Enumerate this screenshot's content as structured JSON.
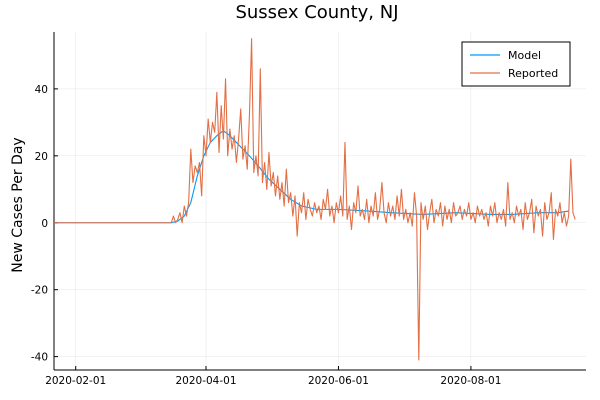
{
  "chart_data": {
    "type": "line",
    "title": "Sussex County, NJ",
    "xlabel": "",
    "ylabel": "New Cases Per Day",
    "x_range": [
      "2020-01-22",
      "2020-09-23"
    ],
    "ylim": [
      -44,
      57
    ],
    "x_ticks": [
      "2020-02-01",
      "2020-04-01",
      "2020-06-01",
      "2020-08-01"
    ],
    "y_ticks": [
      -40,
      -20,
      0,
      20,
      40
    ],
    "grid": true,
    "legend_position": "top-right",
    "colors": {
      "Model": "#009AFA",
      "Reported": "#E26F46"
    },
    "series": [
      {
        "name": "Model",
        "points": [
          [
            "2020-01-22",
            0
          ],
          [
            "2020-03-16",
            0
          ],
          [
            "2020-03-19",
            0.5
          ],
          [
            "2020-03-22",
            2
          ],
          [
            "2020-03-25",
            6
          ],
          [
            "2020-03-28",
            14
          ],
          [
            "2020-03-31",
            20
          ],
          [
            "2020-04-03",
            24
          ],
          [
            "2020-04-06",
            26
          ],
          [
            "2020-04-09",
            27.5
          ],
          [
            "2020-04-12",
            26
          ],
          [
            "2020-04-15",
            24
          ],
          [
            "2020-04-18",
            22
          ],
          [
            "2020-04-21",
            20
          ],
          [
            "2020-04-25",
            17
          ],
          [
            "2020-04-30",
            13
          ],
          [
            "2020-05-05",
            10
          ],
          [
            "2020-05-10",
            7
          ],
          [
            "2020-05-15",
            5
          ],
          [
            "2020-05-22",
            4
          ],
          [
            "2020-06-01",
            4
          ],
          [
            "2020-06-15",
            3.5
          ],
          [
            "2020-06-25",
            3
          ],
          [
            "2020-07-10",
            2.5
          ],
          [
            "2020-07-25",
            3
          ],
          [
            "2020-08-10",
            2.5
          ],
          [
            "2020-08-20",
            2.5
          ],
          [
            "2020-09-01",
            3
          ],
          [
            "2020-09-10",
            3
          ],
          [
            "2020-09-15",
            3.5
          ]
        ]
      },
      {
        "name": "Reported",
        "points": [
          [
            "2020-01-22",
            0
          ],
          [
            "2020-03-16",
            0
          ],
          [
            "2020-03-17",
            2
          ],
          [
            "2020-03-18",
            0
          ],
          [
            "2020-03-19",
            1
          ],
          [
            "2020-03-20",
            3
          ],
          [
            "2020-03-21",
            0
          ],
          [
            "2020-03-22",
            5
          ],
          [
            "2020-03-23",
            2
          ],
          [
            "2020-03-24",
            6
          ],
          [
            "2020-03-25",
            22
          ],
          [
            "2020-03-26",
            12
          ],
          [
            "2020-03-27",
            17
          ],
          [
            "2020-03-28",
            15
          ],
          [
            "2020-03-29",
            18
          ],
          [
            "2020-03-30",
            8
          ],
          [
            "2020-03-31",
            26
          ],
          [
            "2020-04-01",
            20
          ],
          [
            "2020-04-02",
            31
          ],
          [
            "2020-04-03",
            24
          ],
          [
            "2020-04-04",
            30
          ],
          [
            "2020-04-05",
            27
          ],
          [
            "2020-04-06",
            39
          ],
          [
            "2020-04-07",
            21
          ],
          [
            "2020-04-08",
            35
          ],
          [
            "2020-04-09",
            25
          ],
          [
            "2020-04-10",
            43
          ],
          [
            "2020-04-11",
            20
          ],
          [
            "2020-04-12",
            28
          ],
          [
            "2020-04-13",
            22
          ],
          [
            "2020-04-14",
            26
          ],
          [
            "2020-04-15",
            18
          ],
          [
            "2020-04-16",
            25
          ],
          [
            "2020-04-17",
            34
          ],
          [
            "2020-04-18",
            19
          ],
          [
            "2020-04-19",
            23
          ],
          [
            "2020-04-20",
            16
          ],
          [
            "2020-04-21",
            32
          ],
          [
            "2020-04-22",
            55
          ],
          [
            "2020-04-23",
            15
          ],
          [
            "2020-04-24",
            20
          ],
          [
            "2020-04-25",
            14
          ],
          [
            "2020-04-26",
            46
          ],
          [
            "2020-04-27",
            12
          ],
          [
            "2020-04-28",
            18
          ],
          [
            "2020-04-29",
            10
          ],
          [
            "2020-04-30",
            21
          ],
          [
            "2020-05-01",
            11
          ],
          [
            "2020-05-02",
            15
          ],
          [
            "2020-05-03",
            8
          ],
          [
            "2020-05-04",
            14
          ],
          [
            "2020-05-05",
            7
          ],
          [
            "2020-05-06",
            12
          ],
          [
            "2020-05-07",
            5
          ],
          [
            "2020-05-08",
            16
          ],
          [
            "2020-05-09",
            6
          ],
          [
            "2020-05-10",
            9
          ],
          [
            "2020-05-11",
            2
          ],
          [
            "2020-05-12",
            8
          ],
          [
            "2020-05-13",
            -4
          ],
          [
            "2020-05-14",
            6
          ],
          [
            "2020-05-15",
            3
          ],
          [
            "2020-05-16",
            9
          ],
          [
            "2020-05-17",
            1
          ],
          [
            "2020-05-18",
            7
          ],
          [
            "2020-05-19",
            4
          ],
          [
            "2020-05-20",
            2
          ],
          [
            "2020-05-21",
            6
          ],
          [
            "2020-05-22",
            3
          ],
          [
            "2020-05-23",
            5
          ],
          [
            "2020-05-24",
            1
          ],
          [
            "2020-05-25",
            7
          ],
          [
            "2020-05-26",
            4
          ],
          [
            "2020-05-27",
            10
          ],
          [
            "2020-05-28",
            2
          ],
          [
            "2020-05-29",
            5
          ],
          [
            "2020-05-30",
            0
          ],
          [
            "2020-05-31",
            6
          ],
          [
            "2020-06-01",
            3
          ],
          [
            "2020-06-02",
            8
          ],
          [
            "2020-06-03",
            2
          ],
          [
            "2020-06-04",
            24
          ],
          [
            "2020-06-05",
            1
          ],
          [
            "2020-06-06",
            5
          ],
          [
            "2020-06-07",
            -2
          ],
          [
            "2020-06-08",
            6
          ],
          [
            "2020-06-09",
            3
          ],
          [
            "2020-06-10",
            11
          ],
          [
            "2020-06-11",
            2
          ],
          [
            "2020-06-12",
            4
          ],
          [
            "2020-06-13",
            1
          ],
          [
            "2020-06-14",
            7
          ],
          [
            "2020-06-15",
            0
          ],
          [
            "2020-06-16",
            5
          ],
          [
            "2020-06-17",
            2
          ],
          [
            "2020-06-18",
            9
          ],
          [
            "2020-06-19",
            1
          ],
          [
            "2020-06-20",
            4
          ],
          [
            "2020-06-21",
            12
          ],
          [
            "2020-06-22",
            3
          ],
          [
            "2020-06-23",
            0
          ],
          [
            "2020-06-24",
            6
          ],
          [
            "2020-06-25",
            2
          ],
          [
            "2020-06-26",
            5
          ],
          [
            "2020-06-27",
            1
          ],
          [
            "2020-06-28",
            8
          ],
          [
            "2020-06-29",
            2
          ],
          [
            "2020-06-30",
            10
          ],
          [
            "2020-07-01",
            1
          ],
          [
            "2020-07-02",
            4
          ],
          [
            "2020-07-03",
            0
          ],
          [
            "2020-07-04",
            3
          ],
          [
            "2020-07-05",
            -1
          ],
          [
            "2020-07-06",
            9
          ],
          [
            "2020-07-07",
            2
          ],
          [
            "2020-07-08",
            -41
          ],
          [
            "2020-07-09",
            6
          ],
          [
            "2020-07-10",
            1
          ],
          [
            "2020-07-11",
            5
          ],
          [
            "2020-07-12",
            -2
          ],
          [
            "2020-07-13",
            3
          ],
          [
            "2020-07-14",
            7
          ],
          [
            "2020-07-15",
            0
          ],
          [
            "2020-07-16",
            4
          ],
          [
            "2020-07-17",
            2
          ],
          [
            "2020-07-18",
            6
          ],
          [
            "2020-07-19",
            -1
          ],
          [
            "2020-07-20",
            5
          ],
          [
            "2020-07-21",
            1
          ],
          [
            "2020-07-22",
            4
          ],
          [
            "2020-07-23",
            0
          ],
          [
            "2020-07-24",
            6
          ],
          [
            "2020-07-25",
            2
          ],
          [
            "2020-07-26",
            3
          ],
          [
            "2020-07-27",
            5
          ],
          [
            "2020-07-28",
            1
          ],
          [
            "2020-07-29",
            4
          ],
          [
            "2020-07-30",
            2
          ],
          [
            "2020-07-31",
            6
          ],
          [
            "2020-08-01",
            1
          ],
          [
            "2020-08-02",
            3
          ],
          [
            "2020-08-03",
            0
          ],
          [
            "2020-08-04",
            5
          ],
          [
            "2020-08-05",
            2
          ],
          [
            "2020-08-06",
            4
          ],
          [
            "2020-08-07",
            1
          ],
          [
            "2020-08-08",
            3
          ],
          [
            "2020-08-09",
            -1
          ],
          [
            "2020-08-10",
            5
          ],
          [
            "2020-08-11",
            2
          ],
          [
            "2020-08-12",
            6
          ],
          [
            "2020-08-13",
            0
          ],
          [
            "2020-08-14",
            3
          ],
          [
            "2020-08-15",
            1
          ],
          [
            "2020-08-16",
            4
          ],
          [
            "2020-08-17",
            -1
          ],
          [
            "2020-08-18",
            12
          ],
          [
            "2020-08-19",
            1
          ],
          [
            "2020-08-20",
            3
          ],
          [
            "2020-08-21",
            0
          ],
          [
            "2020-08-22",
            5
          ],
          [
            "2020-08-23",
            2
          ],
          [
            "2020-08-24",
            4
          ],
          [
            "2020-08-25",
            -2
          ],
          [
            "2020-08-26",
            6
          ],
          [
            "2020-08-27",
            1
          ],
          [
            "2020-08-28",
            3
          ],
          [
            "2020-08-29",
            7
          ],
          [
            "2020-08-30",
            -3
          ],
          [
            "2020-08-31",
            5
          ],
          [
            "2020-09-01",
            2
          ],
          [
            "2020-09-02",
            4
          ],
          [
            "2020-09-03",
            -4
          ],
          [
            "2020-09-04",
            6
          ],
          [
            "2020-09-05",
            1
          ],
          [
            "2020-09-06",
            3
          ],
          [
            "2020-09-07",
            9
          ],
          [
            "2020-09-08",
            -5
          ],
          [
            "2020-09-09",
            4
          ],
          [
            "2020-09-10",
            2
          ],
          [
            "2020-09-11",
            6
          ],
          [
            "2020-09-12",
            0
          ],
          [
            "2020-09-13",
            3
          ],
          [
            "2020-09-14",
            -1
          ],
          [
            "2020-09-15",
            2
          ],
          [
            "2020-09-16",
            19
          ],
          [
            "2020-09-17",
            3
          ],
          [
            "2020-09-18",
            1
          ]
        ]
      }
    ]
  }
}
